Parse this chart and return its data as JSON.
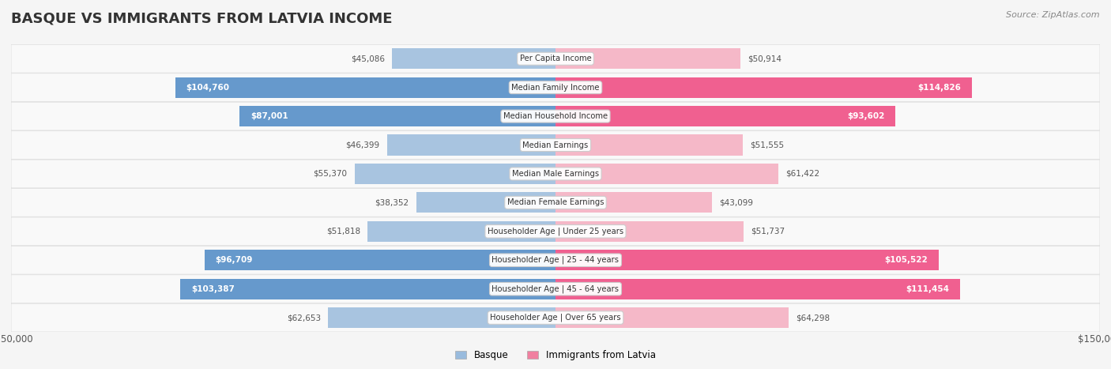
{
  "title": "BASQUE VS IMMIGRANTS FROM LATVIA INCOME",
  "source": "Source: ZipAtlas.com",
  "categories": [
    "Per Capita Income",
    "Median Family Income",
    "Median Household Income",
    "Median Earnings",
    "Median Male Earnings",
    "Median Female Earnings",
    "Householder Age | Under 25 years",
    "Householder Age | 25 - 44 years",
    "Householder Age | 45 - 64 years",
    "Householder Age | Over 65 years"
  ],
  "basque_values": [
    45086,
    104760,
    87001,
    46399,
    55370,
    38352,
    51818,
    96709,
    103387,
    62653
  ],
  "latvia_values": [
    50914,
    114826,
    93602,
    51555,
    61422,
    43099,
    51737,
    105522,
    111454,
    64298
  ],
  "max_val": 150000,
  "basque_color_low": "#a8c4e0",
  "basque_color_high": "#6699cc",
  "latvia_color_low": "#f5b8c8",
  "latvia_color_high": "#f06090",
  "background_color": "#f5f5f5",
  "row_bg_color": "#ffffff",
  "label_color": "#555555",
  "title_color": "#333333",
  "legend_basque_color": "#99bbdd",
  "legend_latvia_color": "#f080a0"
}
